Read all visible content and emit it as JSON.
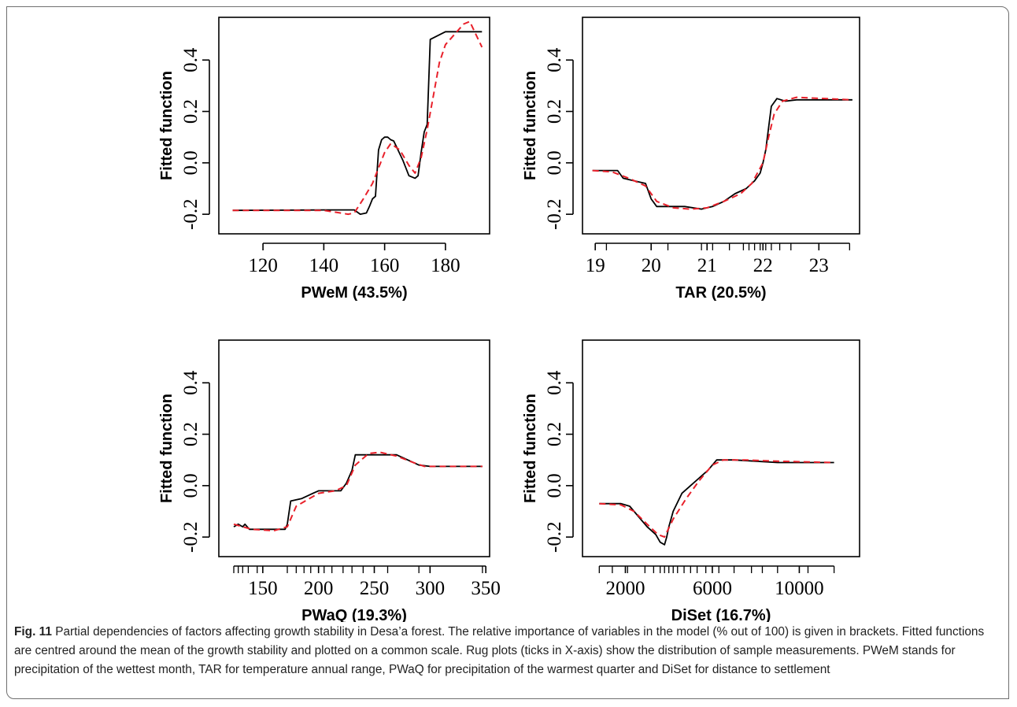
{
  "caption": {
    "label": "Fig. 11",
    "text": "Partial dependencies of factors affecting growth stability in Desa’a forest. The relative importance of variables in the model (% out of 100) is given in brackets. Fitted functions are centred around the mean of the growth stability and plotted on a common scale. Rug plots (ticks in X-axis) show the distribution of sample measurements. PWeM stands for precipitation of the wettest month, TAR for temperature annual range, PWaQ for precipitation of the warmest quarter and DiSet for distance to settlement"
  },
  "colors": {
    "fitted": "#000000",
    "smoothed": "#e8202a",
    "axis": "#000000"
  },
  "chart_data": [
    {
      "type": "line",
      "xlabel": "PWeM  (43.5%)",
      "ylabel": "Fitted function",
      "xlim": [
        106,
        194
      ],
      "ylim": [
        -0.27,
        0.56
      ],
      "xticks": [
        120,
        140,
        160,
        180
      ],
      "yticks": [
        -0.2,
        0.0,
        0.2,
        0.4
      ],
      "rug": [],
      "series": [
        {
          "style": "solid",
          "x": [
            110,
            130,
            140,
            150,
            152,
            154,
            155,
            156,
            157,
            158,
            159,
            160,
            161,
            162,
            163,
            164,
            166,
            168,
            170,
            171,
            172,
            173,
            174,
            175,
            180,
            192
          ],
          "y": [
            -0.185,
            -0.184,
            -0.183,
            -0.183,
            -0.2,
            -0.195,
            -0.17,
            -0.14,
            -0.13,
            0.05,
            0.09,
            0.1,
            0.1,
            0.09,
            0.085,
            0.06,
            0.01,
            -0.05,
            -0.06,
            -0.05,
            0.04,
            0.12,
            0.15,
            0.48,
            0.51,
            0.51
          ]
        },
        {
          "style": "dashed",
          "x": [
            110,
            140,
            148,
            150,
            153,
            156,
            158,
            160,
            162,
            165,
            168,
            170,
            172,
            174,
            176,
            178,
            180,
            183,
            186,
            188,
            190,
            192
          ],
          "y": [
            -0.185,
            -0.185,
            -0.2,
            -0.195,
            -0.14,
            -0.08,
            -0.02,
            0.04,
            0.075,
            0.05,
            -0.01,
            -0.04,
            0.02,
            0.13,
            0.26,
            0.39,
            0.46,
            0.5,
            0.54,
            0.55,
            0.5,
            0.45
          ]
        }
      ]
    },
    {
      "type": "line",
      "xlabel": "TAR  (20.5%)",
      "ylabel": "Fitted function",
      "xlim": [
        18.8,
        23.7
      ],
      "ylim": [
        -0.27,
        0.56
      ],
      "xticks": [
        19,
        20,
        21,
        22,
        23
      ],
      "yticks": [
        -0.2,
        0.0,
        0.2,
        0.4
      ],
      "rug": [
        19.0,
        19.2,
        20.0,
        20.3,
        20.9,
        21.1,
        21.4,
        21.65,
        21.75,
        21.85,
        21.95,
        22.05,
        22.15,
        22.3,
        22.5,
        23.55
      ],
      "series": [
        {
          "style": "solid",
          "x": [
            18.95,
            19.4,
            19.5,
            19.7,
            19.9,
            20.0,
            20.1,
            20.6,
            20.9,
            21.1,
            21.3,
            21.5,
            21.7,
            21.85,
            21.95,
            22.0,
            22.05,
            22.15,
            22.25,
            22.4,
            22.6,
            23.6
          ],
          "y": [
            -0.03,
            -0.03,
            -0.06,
            -0.07,
            -0.08,
            -0.14,
            -0.17,
            -0.17,
            -0.18,
            -0.17,
            -0.15,
            -0.12,
            -0.1,
            -0.07,
            -0.04,
            0.0,
            0.05,
            0.22,
            0.25,
            0.24,
            0.245,
            0.245
          ]
        },
        {
          "style": "dashed",
          "x": [
            18.95,
            19.3,
            19.6,
            19.9,
            20.1,
            20.4,
            20.7,
            21.0,
            21.3,
            21.6,
            21.8,
            22.0,
            22.1,
            22.2,
            22.35,
            22.6,
            23.6
          ],
          "y": [
            -0.03,
            -0.035,
            -0.06,
            -0.09,
            -0.15,
            -0.175,
            -0.18,
            -0.175,
            -0.15,
            -0.12,
            -0.08,
            0.0,
            0.1,
            0.19,
            0.24,
            0.255,
            0.245
          ]
        }
      ]
    },
    {
      "type": "line",
      "xlabel": "PWaQ  (19.3%)",
      "ylabel": "Fitted function",
      "xlim": [
        112,
        352
      ],
      "ylim": [
        -0.27,
        0.56
      ],
      "xticks": [
        150,
        200,
        250,
        300,
        350
      ],
      "yticks": [
        -0.2,
        0.0,
        0.2,
        0.4
      ],
      "rug": [
        124,
        128,
        132,
        137,
        145,
        172,
        180,
        187,
        193,
        205,
        212,
        222,
        230,
        240,
        262,
        290,
        347
      ],
      "series": [
        {
          "style": "solid",
          "x": [
            124,
            128,
            132,
            134,
            138,
            145,
            170,
            172,
            175,
            185,
            195,
            200,
            210,
            220,
            225,
            230,
            233,
            236,
            270,
            280,
            290,
            300,
            347
          ],
          "y": [
            -0.16,
            -0.15,
            -0.16,
            -0.15,
            -0.17,
            -0.17,
            -0.17,
            -0.15,
            -0.06,
            -0.05,
            -0.03,
            -0.02,
            -0.02,
            -0.02,
            0.01,
            0.06,
            0.12,
            0.12,
            0.12,
            0.1,
            0.08,
            0.075,
            0.075
          ]
        },
        {
          "style": "dashed",
          "x": [
            124,
            140,
            160,
            172,
            180,
            200,
            215,
            225,
            233,
            245,
            255,
            270,
            285,
            295,
            347
          ],
          "y": [
            -0.15,
            -0.17,
            -0.175,
            -0.16,
            -0.08,
            -0.03,
            -0.02,
            0.0,
            0.08,
            0.125,
            0.13,
            0.115,
            0.09,
            0.075,
            0.075
          ]
        }
      ]
    },
    {
      "type": "line",
      "xlabel": "DiSet  (16.7%)",
      "ylabel": "Fitted function",
      "xlim": [
        100,
        12700
      ],
      "ylim": [
        -0.27,
        0.56
      ],
      "xticks": [
        2000,
        6000,
        10000
      ],
      "yticks": [
        -0.2,
        0.0,
        0.2,
        0.4
      ],
      "rug": [
        800,
        1400,
        2100,
        2900,
        3300,
        3600,
        3800,
        4000,
        4200,
        4400,
        4700,
        5000,
        5300,
        5700,
        6300,
        7000,
        7800,
        8300,
        9000,
        10400,
        11600
      ],
      "series": [
        {
          "style": "solid",
          "x": [
            800,
            1800,
            2200,
            2600,
            3000,
            3400,
            3600,
            3800,
            3900,
            4000,
            4200,
            4600,
            5000,
            5400,
            5800,
            6200,
            6300,
            7000,
            8000,
            9000,
            11600
          ],
          "y": [
            -0.07,
            -0.07,
            -0.08,
            -0.12,
            -0.16,
            -0.19,
            -0.22,
            -0.23,
            -0.2,
            -0.16,
            -0.1,
            -0.03,
            0.0,
            0.03,
            0.06,
            0.1,
            0.1,
            0.1,
            0.095,
            0.09,
            0.09
          ]
        },
        {
          "style": "dashed",
          "x": [
            800,
            1800,
            2400,
            3000,
            3500,
            3800,
            4200,
            4800,
            5400,
            6000,
            6500,
            7500,
            9000,
            11600
          ],
          "y": [
            -0.07,
            -0.075,
            -0.1,
            -0.15,
            -0.19,
            -0.2,
            -0.13,
            -0.05,
            0.02,
            0.08,
            0.1,
            0.1,
            0.095,
            0.09
          ]
        }
      ]
    }
  ]
}
